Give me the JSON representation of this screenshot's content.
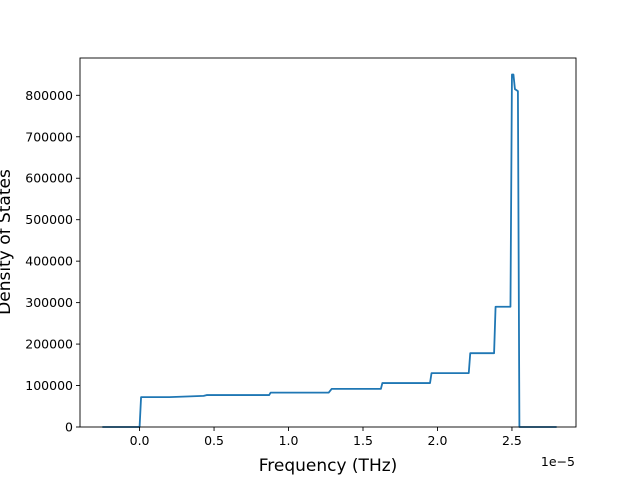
{
  "chart_data": {
    "type": "line",
    "title": "",
    "xlabel": "Frequency (THz)",
    "ylabel": "Density of States",
    "x_offset_label": "1e−5",
    "x_tick_labels": [
      "0.0",
      "0.5",
      "1.0",
      "1.5",
      "2.0",
      "2.5"
    ],
    "x_ticks": [
      0.0,
      0.5,
      1.0,
      1.5,
      2.0,
      2.5
    ],
    "y_tick_labels": [
      "0",
      "100000",
      "200000",
      "300000",
      "400000",
      "500000",
      "600000",
      "700000",
      "800000"
    ],
    "y_ticks": [
      0,
      100000,
      200000,
      300000,
      400000,
      500000,
      600000,
      700000,
      800000
    ],
    "xlim": [
      -0.4,
      2.93
    ],
    "ylim": [
      0,
      890000
    ],
    "grid": false,
    "series": [
      {
        "color": "#1f77b4",
        "x_scale_note": "x values shown in units of 1e-5 THz",
        "points": [
          [
            -0.25,
            0
          ],
          [
            0.0,
            0
          ],
          [
            0.01,
            72000
          ],
          [
            0.2,
            72000
          ],
          [
            0.43,
            75000
          ],
          [
            0.45,
            77000
          ],
          [
            0.87,
            77000
          ],
          [
            0.88,
            83000
          ],
          [
            1.27,
            83000
          ],
          [
            1.29,
            92000
          ],
          [
            1.62,
            92000
          ],
          [
            1.63,
            106000
          ],
          [
            1.95,
            106000
          ],
          [
            1.96,
            130000
          ],
          [
            2.21,
            130000
          ],
          [
            2.22,
            178000
          ],
          [
            2.38,
            178000
          ],
          [
            2.39,
            290000
          ],
          [
            2.49,
            290000
          ],
          [
            2.5,
            850000
          ],
          [
            2.51,
            850000
          ],
          [
            2.52,
            815000
          ],
          [
            2.54,
            810000
          ],
          [
            2.55,
            0
          ],
          [
            2.8,
            0
          ]
        ]
      }
    ]
  }
}
